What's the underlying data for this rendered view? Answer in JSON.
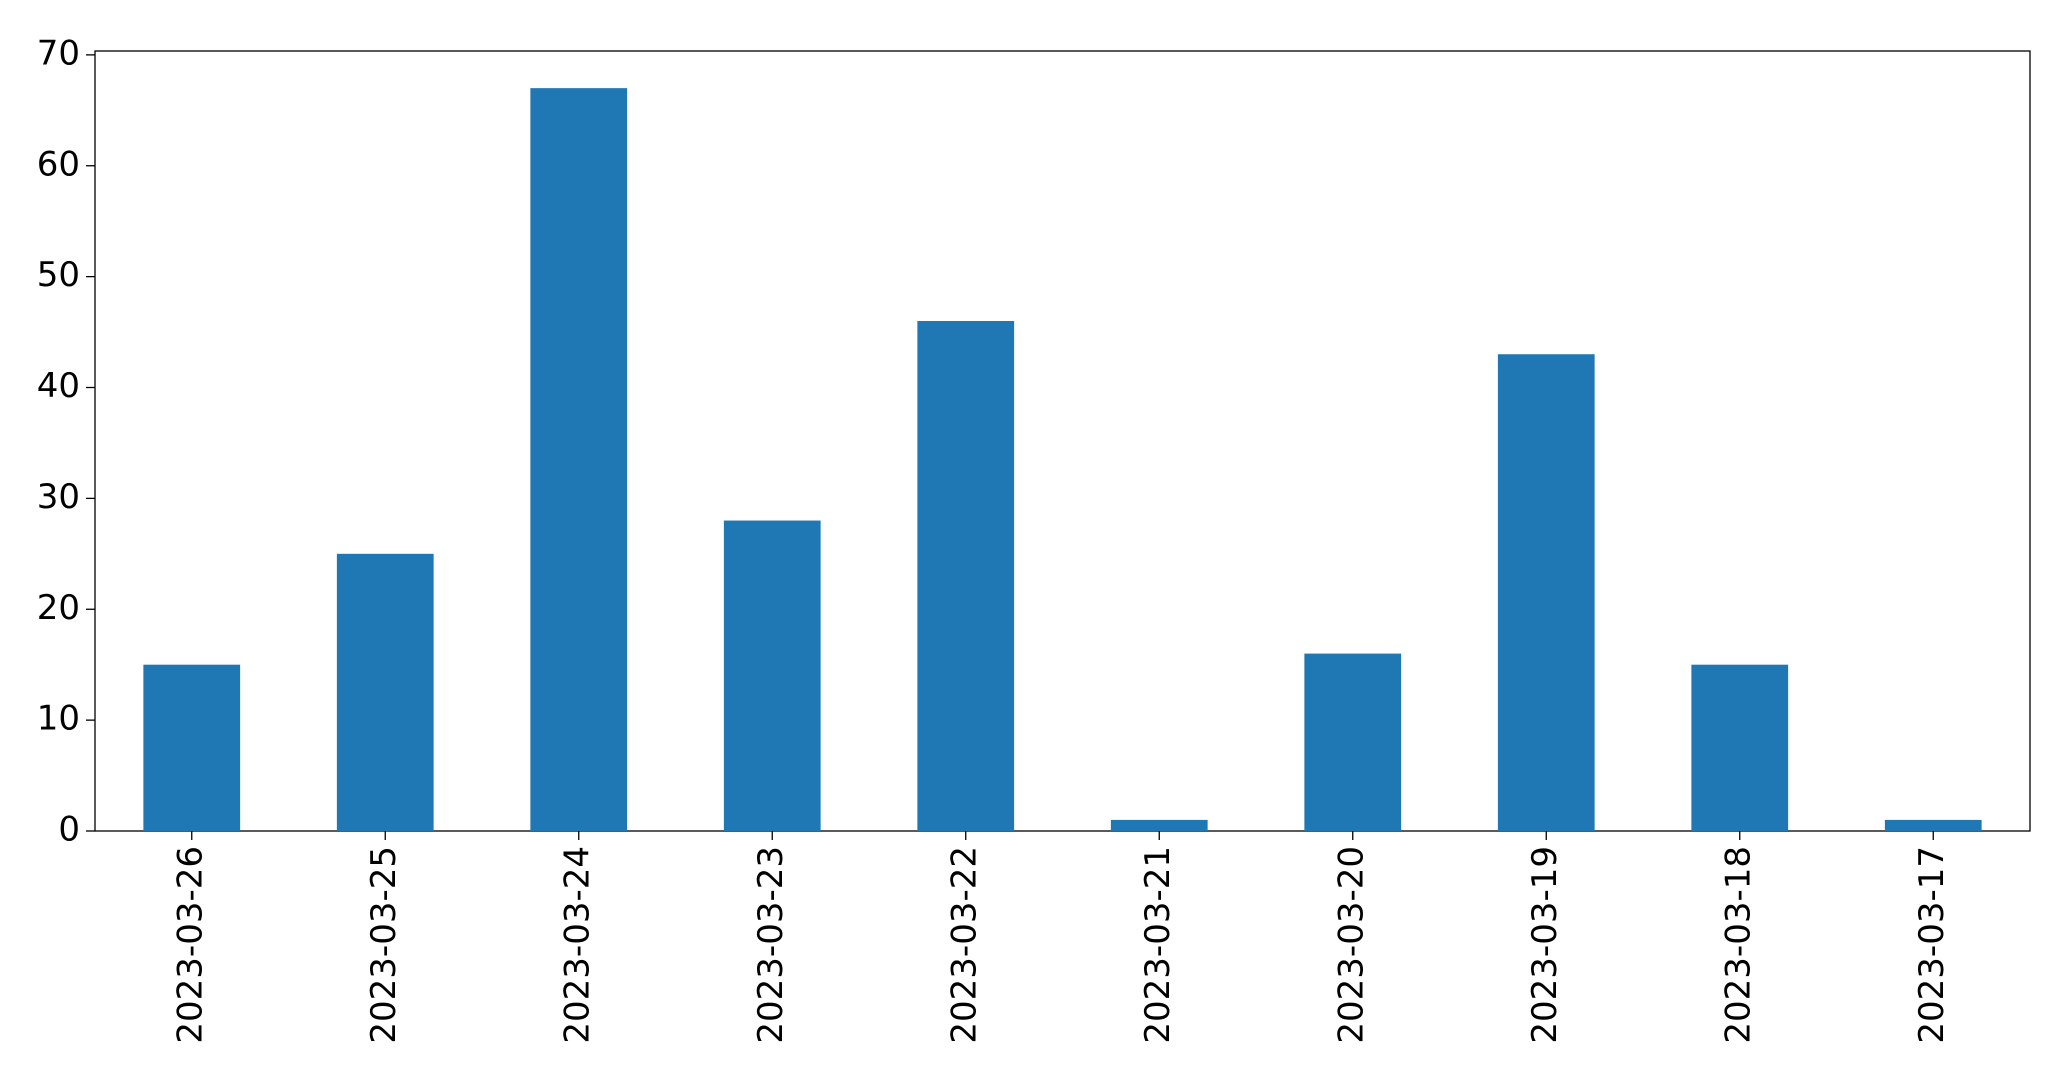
{
  "chart_data": {
    "type": "bar",
    "categories": [
      "2023-03-26",
      "2023-03-25",
      "2023-03-24",
      "2023-03-23",
      "2023-03-22",
      "2023-03-21",
      "2023-03-20",
      "2023-03-19",
      "2023-03-18",
      "2023-03-17"
    ],
    "values": [
      15,
      25,
      67,
      28,
      46,
      1,
      16,
      43,
      15,
      1
    ],
    "color": "#1f77b4",
    "ylim": [
      0,
      70.35
    ],
    "yticks": [
      0,
      10,
      20,
      30,
      40,
      50,
      60,
      70
    ],
    "grid": false
  }
}
